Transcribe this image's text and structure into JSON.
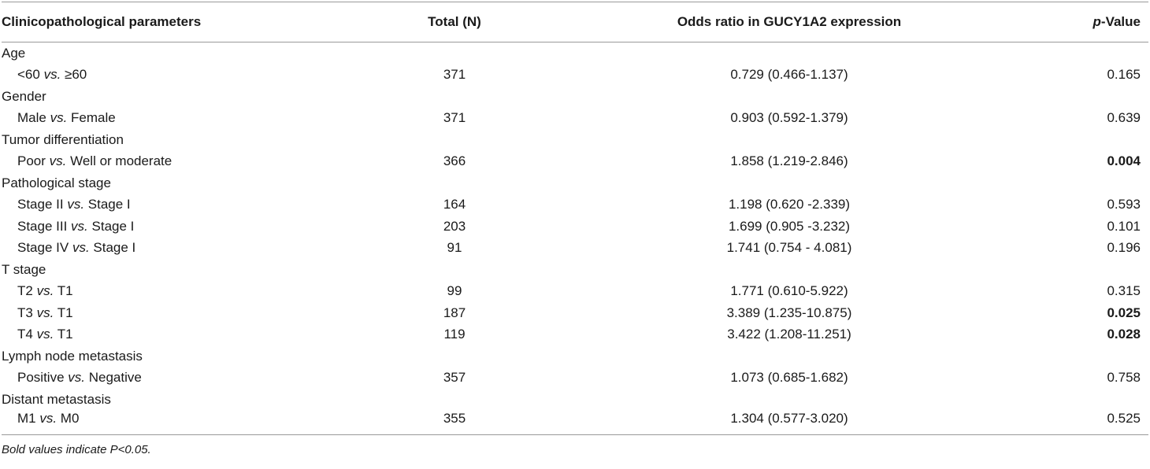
{
  "table": {
    "headers": [
      [
        {
          "text": "Clinicopathological parameters"
        }
      ],
      [
        {
          "text": "Total (N)"
        }
      ],
      [
        {
          "text": "Odds ratio in GUCY1A2 expression"
        }
      ],
      [
        {
          "text": "p",
          "italic": true
        },
        {
          "text": "-Value"
        }
      ]
    ],
    "groups": [
      {
        "title": "Age",
        "rows": [
          {
            "label": [
              {
                "text": "<60 "
              },
              {
                "text": "vs.",
                "italic": true
              },
              {
                "text": " ≥60"
              }
            ],
            "total": 371,
            "odds": "0.729 (0.466-1.137)",
            "p": "0.165"
          }
        ]
      },
      {
        "title": "Gender",
        "rows": [
          {
            "label": [
              {
                "text": "Male "
              },
              {
                "text": "vs.",
                "italic": true
              },
              {
                "text": " Female"
              }
            ],
            "total": 371,
            "odds": "0.903 (0.592-1.379)",
            "p": "0.639"
          }
        ]
      },
      {
        "title": "Tumor differentiation",
        "rows": [
          {
            "label": [
              {
                "text": "Poor "
              },
              {
                "text": "vs.",
                "italic": true
              },
              {
                "text": " Well or moderate"
              }
            ],
            "total": 366,
            "odds": "1.858 (1.219-2.846)",
            "p": "0.004",
            "bold": true
          }
        ]
      },
      {
        "title": "Pathological stage",
        "rows": [
          {
            "label": [
              {
                "text": "Stage II "
              },
              {
                "text": "vs.",
                "italic": true
              },
              {
                "text": " Stage I"
              }
            ],
            "total": 164,
            "odds": "1.198 (0.620 -2.339)",
            "p": "0.593"
          },
          {
            "label": [
              {
                "text": "Stage III "
              },
              {
                "text": "vs.",
                "italic": true
              },
              {
                "text": " Stage I"
              }
            ],
            "total": 203,
            "odds": "1.699 (0.905 -3.232)",
            "p": "0.101"
          },
          {
            "label": [
              {
                "text": "Stage IV "
              },
              {
                "text": "vs.",
                "italic": true
              },
              {
                "text": " Stage I"
              }
            ],
            "total": 91,
            "odds": "1.741 (0.754 - 4.081)",
            "p": "0.196"
          }
        ]
      },
      {
        "title": "T stage",
        "rows": [
          {
            "label": [
              {
                "text": "T2 "
              },
              {
                "text": "vs.",
                "italic": true
              },
              {
                "text": " T1"
              }
            ],
            "total": 99,
            "odds": "1.771 (0.610-5.922)",
            "p": "0.315"
          },
          {
            "label": [
              {
                "text": "T3 "
              },
              {
                "text": "vs.",
                "italic": true
              },
              {
                "text": " T1"
              }
            ],
            "total": 187,
            "odds": "3.389 (1.235-10.875)",
            "p": "0.025",
            "bold": true
          },
          {
            "label": [
              {
                "text": "T4 "
              },
              {
                "text": "vs.",
                "italic": true
              },
              {
                "text": " T1"
              }
            ],
            "total": 119,
            "odds": "3.422 (1.208-11.251)",
            "p": "0.028",
            "bold": true
          }
        ]
      },
      {
        "title": "Lymph node metastasis",
        "rows": [
          {
            "label": [
              {
                "text": "Positive "
              },
              {
                "text": "vs.",
                "italic": true
              },
              {
                "text": " Negative"
              }
            ],
            "total": 357,
            "odds": "1.073 (0.685-1.682)",
            "p": "0.758"
          }
        ]
      },
      {
        "title": "Distant metastasis",
        "rows": [
          {
            "label": [
              {
                "text": "M1 "
              },
              {
                "text": "vs.",
                "italic": true
              },
              {
                "text": " M0"
              }
            ],
            "total": 355,
            "odds": "1.304 (0.577-3.020)",
            "p": "0.525"
          }
        ]
      }
    ],
    "footnote": "Bold values indicate P<0.05."
  }
}
